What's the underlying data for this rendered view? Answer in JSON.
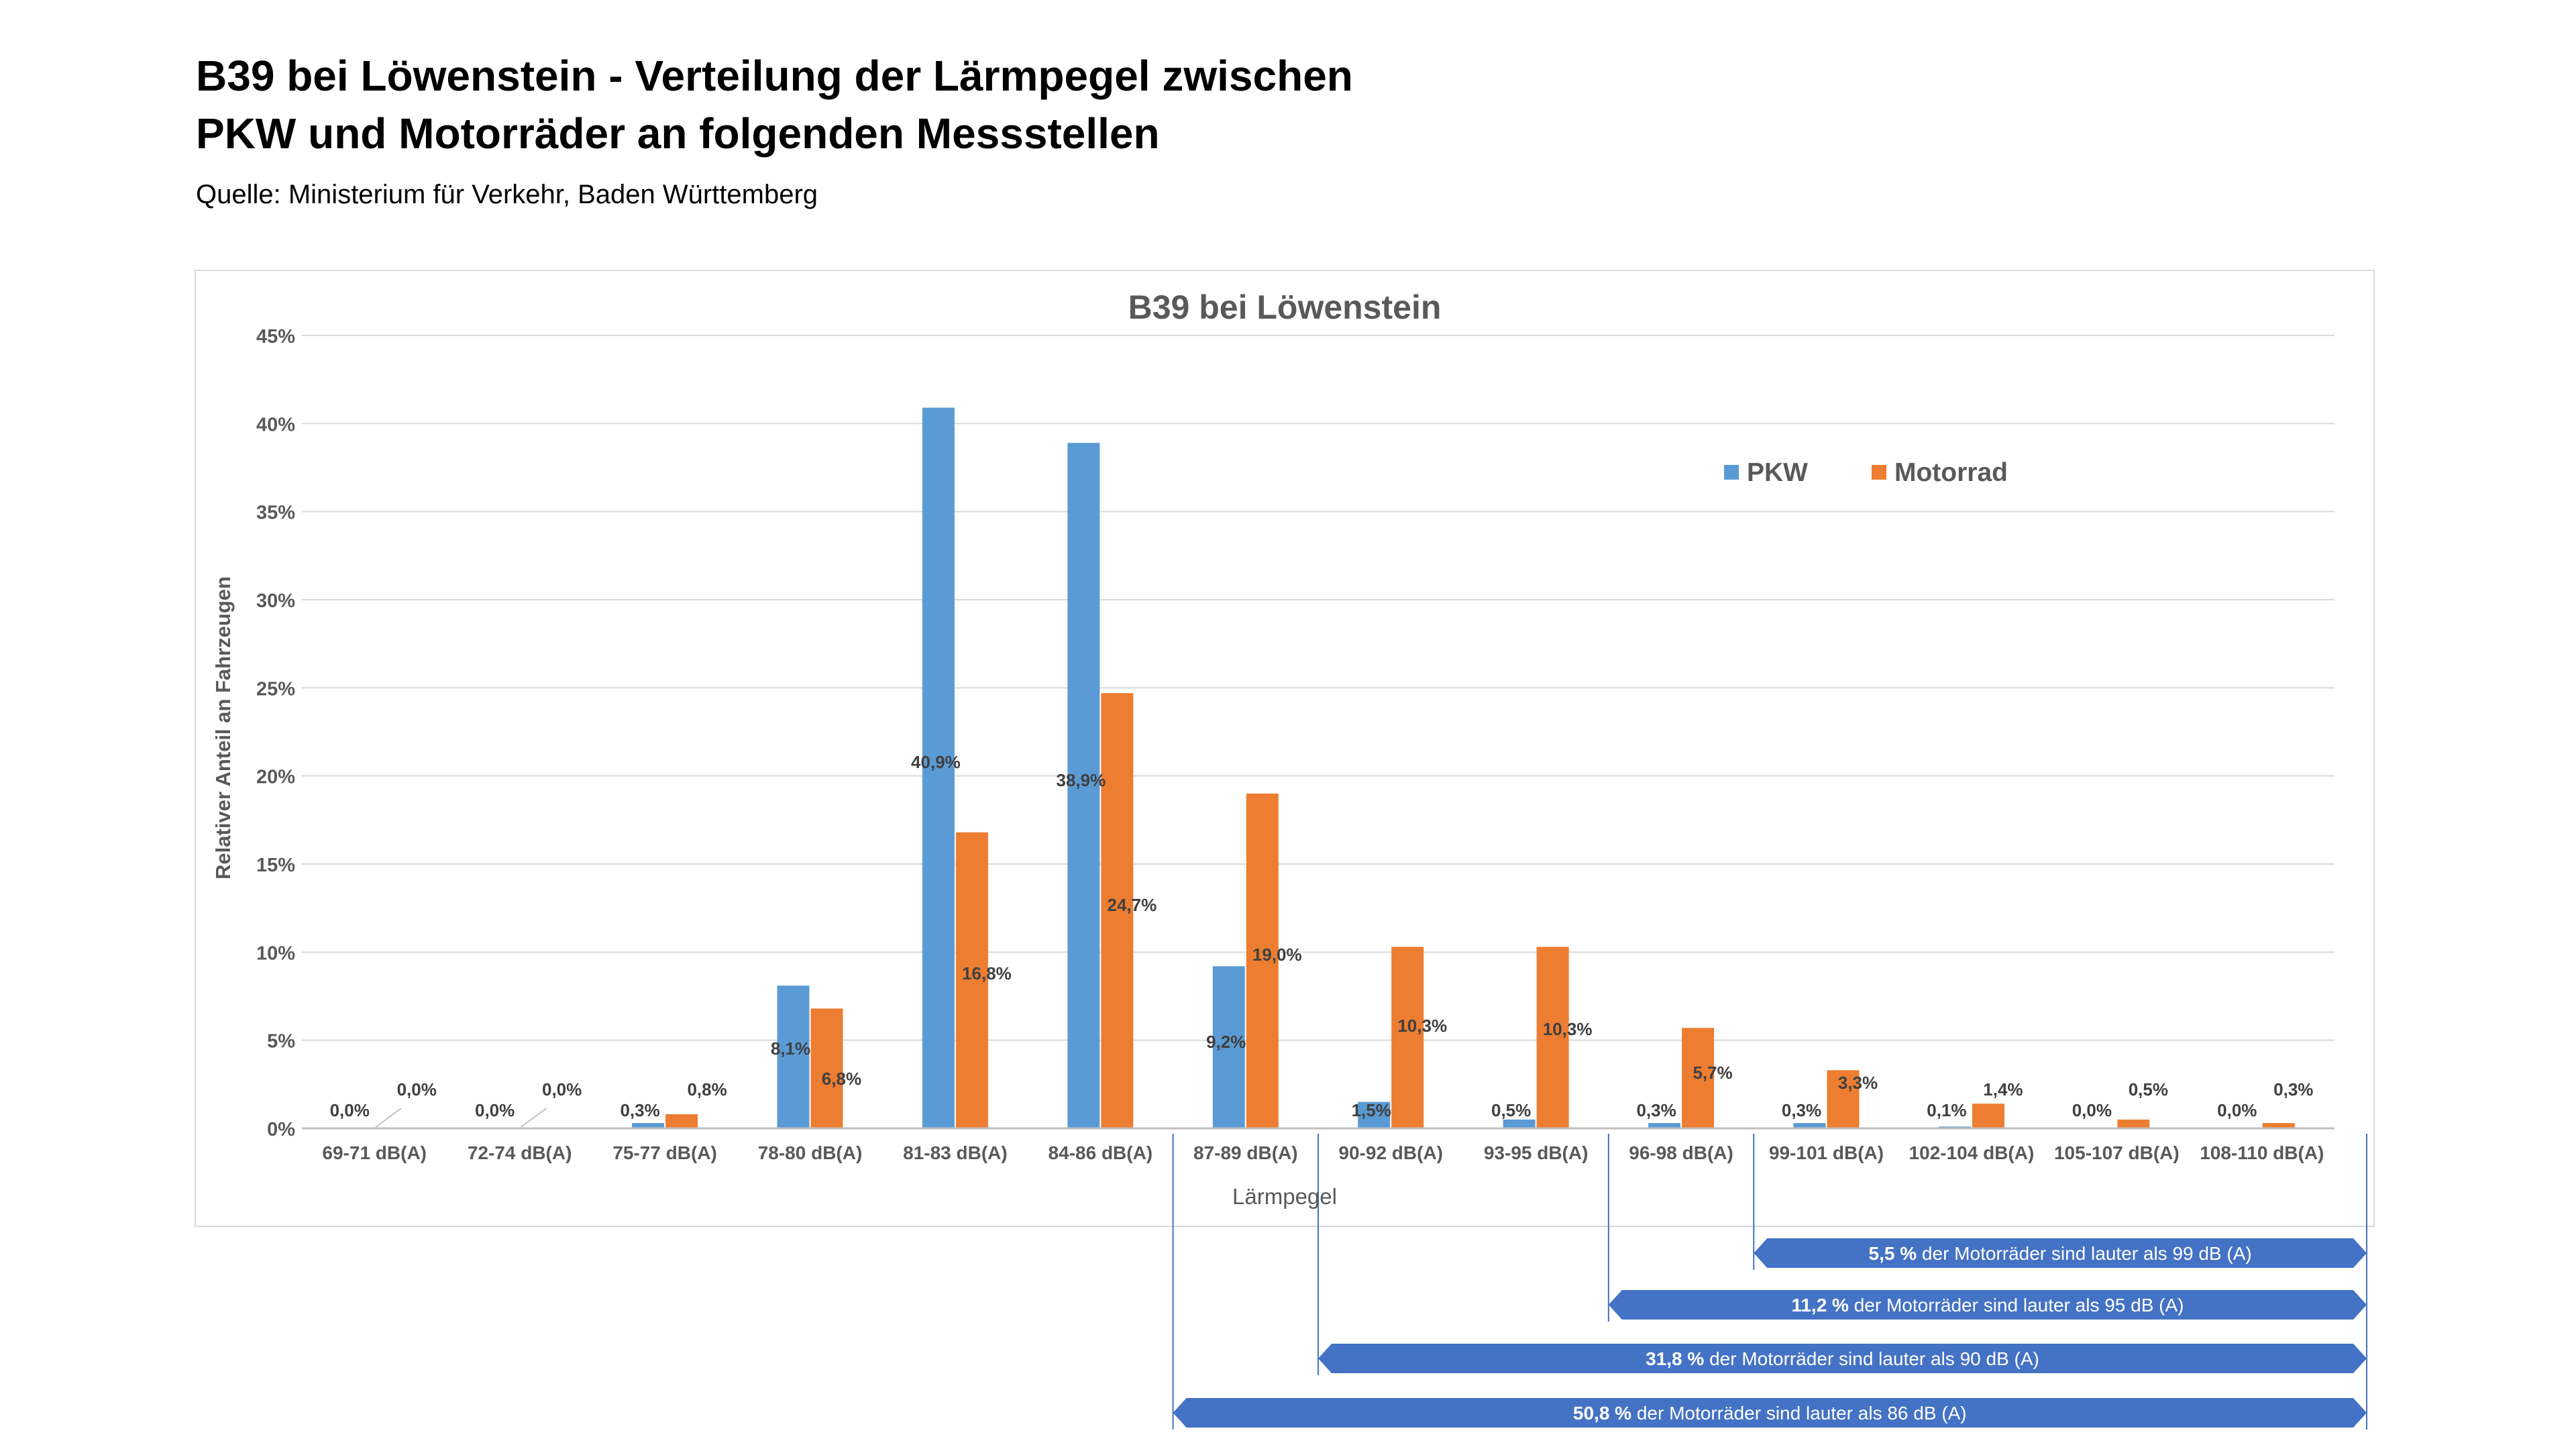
{
  "page": {
    "title_line1": "B39 bei Löwenstein - Verteilung der Lärmpegel zwischen",
    "title_line2": "PKW und Motorräder an folgenden Messstellen",
    "source": "Quelle: Ministerium für Verkehr, Baden Württemberg"
  },
  "chart_data": {
    "type": "bar",
    "title": "B39 bei Löwenstein",
    "xlabel": "Lärmpegel",
    "ylabel": "Relativer Anteil an Fahrzeugen",
    "ylim": [
      0,
      45
    ],
    "yticks": [
      "0%",
      "5%",
      "10%",
      "15%",
      "20%",
      "25%",
      "30%",
      "35%",
      "40%",
      "45%"
    ],
    "grid": true,
    "legend_position": "top-right",
    "categories": [
      "69-71 dB(A)",
      "72-74 dB(A)",
      "75-77 dB(A)",
      "78-80 dB(A)",
      "81-83 dB(A)",
      "84-86 dB(A)",
      "87-89 dB(A)",
      "90-92 dB(A)",
      "93-95 dB(A)",
      "96-98 dB(A)",
      "99-101 dB(A)",
      "102-104 dB(A)",
      "105-107 dB(A)",
      "108-110 dB(A)"
    ],
    "series": [
      {
        "name": "PKW",
        "color": "#5b9bd5",
        "values": [
          0.0,
          0.0,
          0.3,
          8.1,
          40.9,
          38.9,
          9.2,
          1.5,
          0.5,
          0.3,
          0.3,
          0.1,
          0.0,
          0.0
        ],
        "labels": [
          "0,0%",
          "0,0%",
          "0,3%",
          "8,1%",
          "40,9%",
          "38,9%",
          "9,2%",
          "1,5%",
          "0,5%",
          "0,3%",
          "0,3%",
          "0,1%",
          "0,0%",
          "0,0%"
        ]
      },
      {
        "name": "Motorrad",
        "color": "#ed7d31",
        "values": [
          0.0,
          0.0,
          0.8,
          6.8,
          16.8,
          24.7,
          19.0,
          10.3,
          10.3,
          5.7,
          3.3,
          1.4,
          0.5,
          0.3
        ],
        "labels": [
          "0,0%",
          "0,0%",
          "0,8%",
          "6,8%",
          "16,8%",
          "24,7%",
          "19,0%",
          "10,3%",
          "10,3%",
          "5,7%",
          "3,3%",
          "1,4%",
          "0,5%",
          "0,3%"
        ]
      }
    ],
    "annotations": [
      {
        "start_category": 10,
        "bold": "5,5 %",
        "text": " der Motorräder sind lauter als 99 dB (A)"
      },
      {
        "start_category": 9,
        "bold": "11,2 %",
        "text": " der Motorräder sind lauter als 95 dB (A)"
      },
      {
        "start_category": 7,
        "bold": "31,8 %",
        "text": " der Motorräder sind lauter als 90 dB (A)"
      },
      {
        "start_category": 6,
        "bold": "50,8 %",
        "text": " der Motorräder sind lauter als 86 dB (A)"
      }
    ],
    "annotation_color": "#4472c4"
  }
}
